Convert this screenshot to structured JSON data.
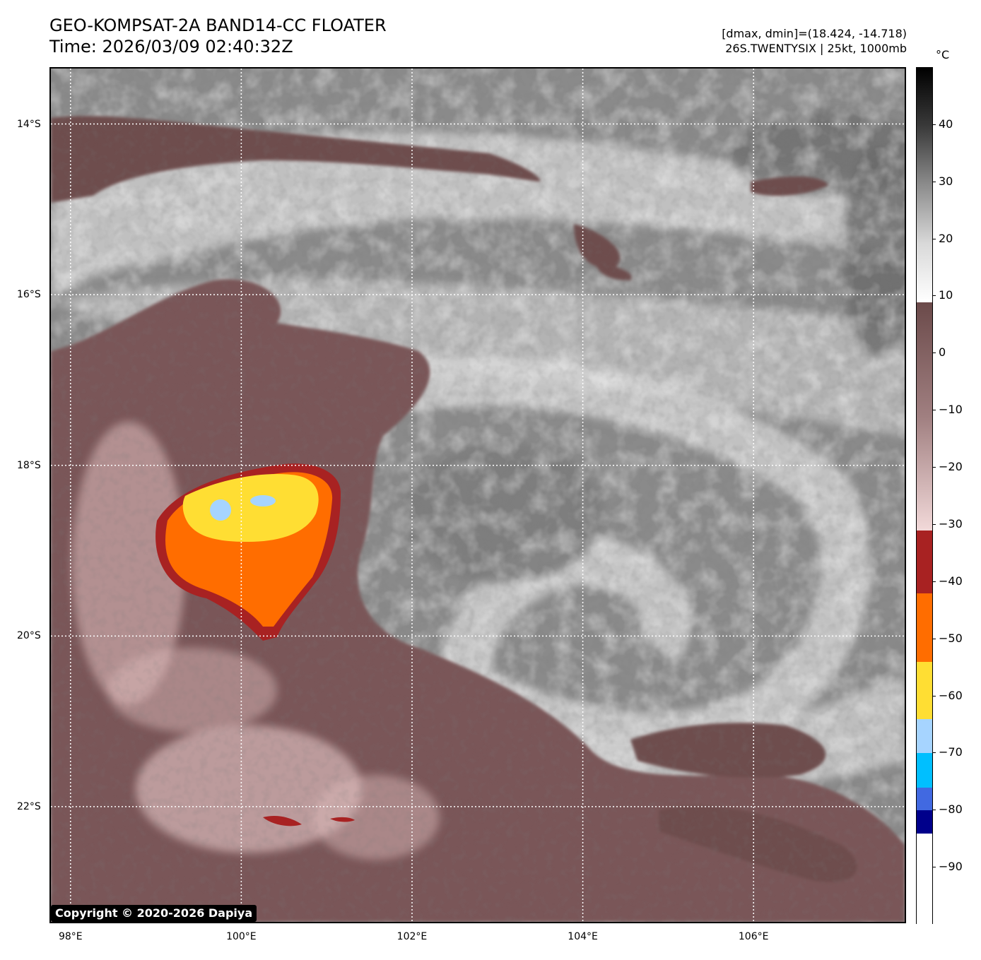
{
  "header": {
    "title": "GEO-KOMPSAT-2A BAND14-CC FLOATER",
    "time": "Time: 2026/03/09 02:40:32Z",
    "range": "[dmax, dmin]=(18.424, -14.718)",
    "storm": "26S.TWENTYSIX | 25kt, 1000mb"
  },
  "map": {
    "lat_labels": [
      "14°S",
      "16°S",
      "18°S",
      "20°S",
      "22°S"
    ],
    "lon_labels": [
      "98°E",
      "100°E",
      "102°E",
      "104°E",
      "106°E"
    ],
    "lat_values": [
      -14,
      -16,
      -18,
      -20,
      -22
    ],
    "lon_values": [
      98,
      100,
      102,
      104,
      106
    ],
    "lat_range": [
      -23.35,
      -13.35
    ],
    "lon_range": [
      97.77,
      107.77
    ],
    "copyright": "Copyright © 2020-2026 Dapiya"
  },
  "colorbar": {
    "unit": "°C",
    "range": [
      -100,
      50
    ],
    "ticks": [
      "40",
      "30",
      "20",
      "10",
      "0",
      "−10",
      "−20",
      "−30",
      "−40",
      "−50",
      "−60",
      "−70",
      "−80",
      "−90"
    ],
    "tick_values": [
      40,
      30,
      20,
      10,
      0,
      -10,
      -20,
      -30,
      -40,
      -50,
      -60,
      -70,
      -80,
      -90
    ],
    "segments": [
      {
        "from": 50,
        "to": 9,
        "colors": [
          "#000000",
          "#3a3a3a",
          "#8c8c8c",
          "#d9d9d9",
          "#ffffff"
        ]
      },
      {
        "from": 9,
        "to": -31,
        "colors": [
          "#6b4a4a",
          "#a07f80",
          "#f2d9d9"
        ]
      },
      {
        "from": -31,
        "to": -42,
        "colors": [
          "#a82222"
        ]
      },
      {
        "from": -42,
        "to": -54,
        "colors": [
          "#ff6d00"
        ]
      },
      {
        "from": -54,
        "to": -64,
        "colors": [
          "#ffde33"
        ]
      },
      {
        "from": -64,
        "to": -70,
        "colors": [
          "#a6d4ff"
        ]
      },
      {
        "from": -70,
        "to": -76,
        "colors": [
          "#00bfff"
        ]
      },
      {
        "from": -76,
        "to": -80,
        "colors": [
          "#4169e1"
        ]
      },
      {
        "from": -80,
        "to": -84,
        "colors": [
          "#00008b"
        ]
      },
      {
        "from": -84,
        "to": -100,
        "colors": [
          "#ffffff"
        ]
      }
    ]
  },
  "palette": {
    "background_gray": "#8a8a8a",
    "cloud_white": "#e6e6e6",
    "cold_brown": "#6e4d4e",
    "cold_pink": "#d9b8b8",
    "red": "#a82222",
    "orange": "#ff6d00",
    "yellow": "#ffde33",
    "light_blue": "#a6d4ff"
  }
}
